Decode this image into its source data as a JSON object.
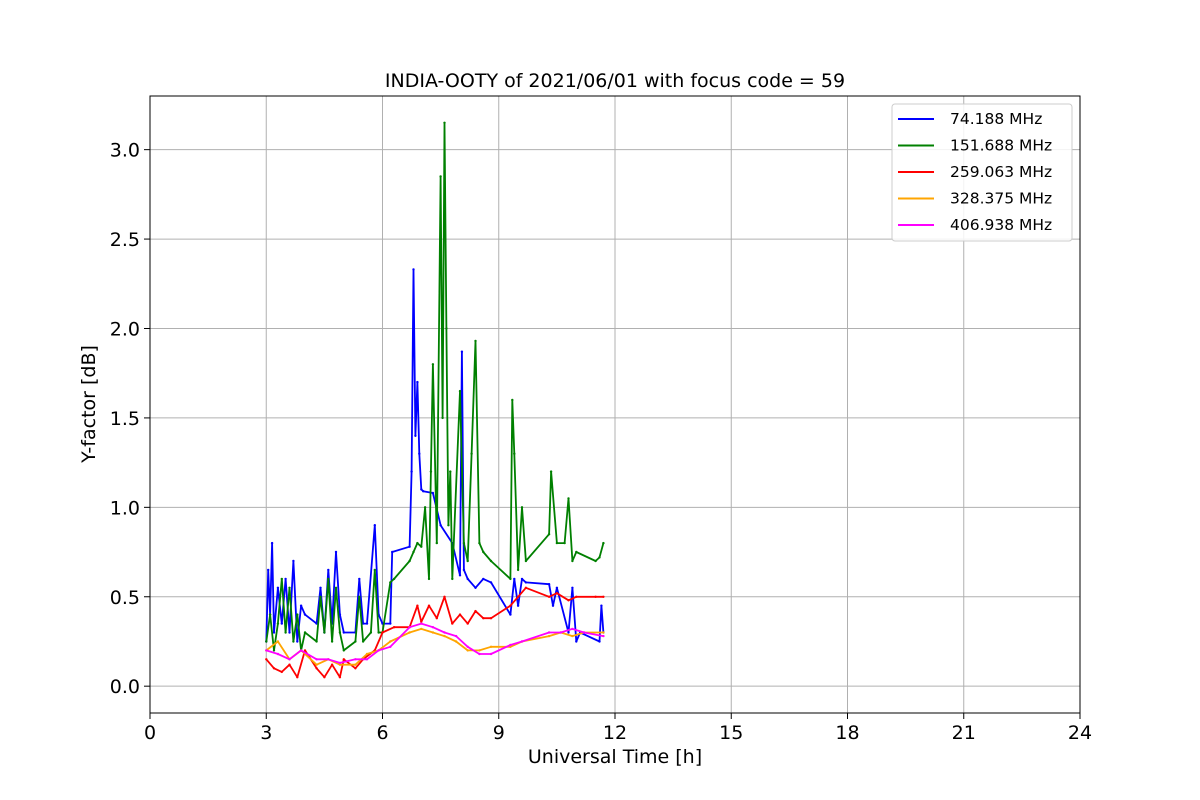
{
  "chart_data": {
    "type": "line",
    "title": "INDIA-OOTY of 2021/06/01 with focus code = 59",
    "xlabel": "Universal Time [h]",
    "ylabel": "Y-factor [dB]",
    "xlim": [
      0,
      24
    ],
    "ylim": [
      -0.15,
      3.3
    ],
    "xticks": [
      0,
      3,
      6,
      9,
      12,
      15,
      18,
      21,
      24
    ],
    "xtick_labels": [
      "0",
      "3",
      "6",
      "9",
      "12",
      "15",
      "18",
      "21",
      "24"
    ],
    "yticks": [
      0.0,
      0.5,
      1.0,
      1.5,
      2.0,
      2.5,
      3.0
    ],
    "ytick_labels": [
      "0.0",
      "0.5",
      "1.0",
      "1.5",
      "2.0",
      "2.5",
      "3.0"
    ],
    "grid": true,
    "legend_position": "top-right",
    "series": [
      {
        "name": " 74.188 MHz",
        "color": "#0000ff",
        "x": [
          3.0,
          3.05,
          3.1,
          3.15,
          3.2,
          3.3,
          3.4,
          3.5,
          3.6,
          3.7,
          3.8,
          3.9,
          4.0,
          4.3,
          4.4,
          4.5,
          4.6,
          4.7,
          4.8,
          4.9,
          5.0,
          5.3,
          5.4,
          5.5,
          5.6,
          5.8,
          5.9,
          6.0,
          6.2,
          6.25,
          6.7,
          6.75,
          6.8,
          6.85,
          6.9,
          6.95,
          7.0,
          7.05,
          7.3,
          7.5,
          7.8,
          8.0,
          8.05,
          8.1,
          8.2,
          8.4,
          8.6,
          8.8,
          9.3,
          9.4,
          9.5,
          9.6,
          9.7,
          10.3,
          10.4,
          10.5,
          10.8,
          10.9,
          11.0,
          11.1,
          11.6,
          11.65,
          11.7
        ],
        "y": [
          0.25,
          0.65,
          0.4,
          0.8,
          0.3,
          0.55,
          0.35,
          0.6,
          0.3,
          0.7,
          0.25,
          0.45,
          0.4,
          0.35,
          0.55,
          0.3,
          0.65,
          0.35,
          0.75,
          0.4,
          0.3,
          0.3,
          0.6,
          0.35,
          0.35,
          0.9,
          0.4,
          0.35,
          0.35,
          0.75,
          0.78,
          1.2,
          2.33,
          1.4,
          1.7,
          1.3,
          1.1,
          1.09,
          1.08,
          0.9,
          0.8,
          0.62,
          1.87,
          0.65,
          0.6,
          0.55,
          0.6,
          0.58,
          0.4,
          0.6,
          0.45,
          0.6,
          0.58,
          0.57,
          0.45,
          0.55,
          0.3,
          0.55,
          0.25,
          0.3,
          0.25,
          0.45,
          0.3
        ]
      },
      {
        "name": "151.688 MHz",
        "color": "#008000",
        "x": [
          3.0,
          3.1,
          3.2,
          3.3,
          3.4,
          3.5,
          3.6,
          3.7,
          3.8,
          3.9,
          4.0,
          4.3,
          4.4,
          4.5,
          4.6,
          4.7,
          4.8,
          4.9,
          5.0,
          5.3,
          5.4,
          5.5,
          5.7,
          5.8,
          5.9,
          6.0,
          6.2,
          6.3,
          6.7,
          6.8,
          6.9,
          7.0,
          7.1,
          7.2,
          7.25,
          7.3,
          7.4,
          7.5,
          7.55,
          7.6,
          7.65,
          7.7,
          7.75,
          7.8,
          8.0,
          8.1,
          8.2,
          8.3,
          8.4,
          8.5,
          8.6,
          8.8,
          9.3,
          9.35,
          9.4,
          9.5,
          9.6,
          9.7,
          10.3,
          10.35,
          10.5,
          10.7,
          10.8,
          10.9,
          11.0,
          11.5,
          11.6,
          11.7
        ],
        "y": [
          0.25,
          0.4,
          0.2,
          0.35,
          0.6,
          0.3,
          0.55,
          0.25,
          0.4,
          0.2,
          0.3,
          0.25,
          0.5,
          0.3,
          0.6,
          0.25,
          0.55,
          0.3,
          0.2,
          0.25,
          0.5,
          0.25,
          0.3,
          0.65,
          0.3,
          0.3,
          0.58,
          0.6,
          0.7,
          0.75,
          0.8,
          0.78,
          1.0,
          0.6,
          1.2,
          1.8,
          0.8,
          2.85,
          1.5,
          3.15,
          2.0,
          0.9,
          1.2,
          0.6,
          1.65,
          0.8,
          0.7,
          1.3,
          1.93,
          0.8,
          0.75,
          0.7,
          0.6,
          1.6,
          1.3,
          0.65,
          1.0,
          0.7,
          0.85,
          1.2,
          0.8,
          0.8,
          1.05,
          0.7,
          0.75,
          0.7,
          0.72,
          0.8
        ]
      },
      {
        "name": "259.063 MHz",
        "color": "#ff0000",
        "x": [
          3.0,
          3.2,
          3.4,
          3.6,
          3.8,
          4.0,
          4.3,
          4.5,
          4.7,
          4.9,
          5.0,
          5.3,
          5.5,
          5.8,
          6.0,
          6.3,
          6.7,
          6.9,
          7.0,
          7.2,
          7.4,
          7.6,
          7.8,
          8.0,
          8.2,
          8.4,
          8.6,
          8.8,
          9.3,
          9.5,
          9.7,
          10.3,
          10.5,
          10.8,
          11.0,
          11.5,
          11.7
        ],
        "y": [
          0.15,
          0.1,
          0.08,
          0.12,
          0.05,
          0.2,
          0.1,
          0.05,
          0.12,
          0.05,
          0.15,
          0.1,
          0.15,
          0.2,
          0.3,
          0.33,
          0.33,
          0.45,
          0.36,
          0.45,
          0.38,
          0.5,
          0.35,
          0.4,
          0.35,
          0.42,
          0.38,
          0.38,
          0.45,
          0.5,
          0.55,
          0.5,
          0.52,
          0.48,
          0.5,
          0.5,
          0.5
        ]
      },
      {
        "name": "328.375 MHz",
        "color": "#ffa500",
        "x": [
          3.0,
          3.3,
          3.6,
          3.9,
          4.3,
          4.6,
          4.9,
          5.3,
          5.6,
          5.9,
          6.2,
          6.7,
          7.0,
          7.3,
          7.6,
          7.9,
          8.2,
          8.5,
          8.8,
          9.3,
          9.6,
          10.3,
          10.6,
          10.9,
          11.2,
          11.7
        ],
        "y": [
          0.2,
          0.25,
          0.15,
          0.2,
          0.12,
          0.15,
          0.12,
          0.12,
          0.18,
          0.2,
          0.25,
          0.3,
          0.32,
          0.3,
          0.28,
          0.25,
          0.2,
          0.2,
          0.22,
          0.22,
          0.25,
          0.28,
          0.3,
          0.28,
          0.3,
          0.3
        ]
      },
      {
        "name": "406.938 MHz",
        "color": "#ff00ff",
        "x": [
          3.0,
          3.3,
          3.6,
          3.9,
          4.3,
          4.6,
          4.9,
          5.3,
          5.6,
          5.9,
          6.2,
          6.7,
          7.0,
          7.3,
          7.6,
          7.9,
          8.2,
          8.5,
          8.8,
          9.3,
          9.6,
          10.3,
          10.6,
          10.9,
          11.2,
          11.7
        ],
        "y": [
          0.2,
          0.18,
          0.15,
          0.2,
          0.15,
          0.15,
          0.13,
          0.15,
          0.15,
          0.2,
          0.22,
          0.33,
          0.35,
          0.33,
          0.3,
          0.28,
          0.22,
          0.18,
          0.18,
          0.23,
          0.25,
          0.3,
          0.3,
          0.32,
          0.3,
          0.28
        ]
      }
    ]
  }
}
